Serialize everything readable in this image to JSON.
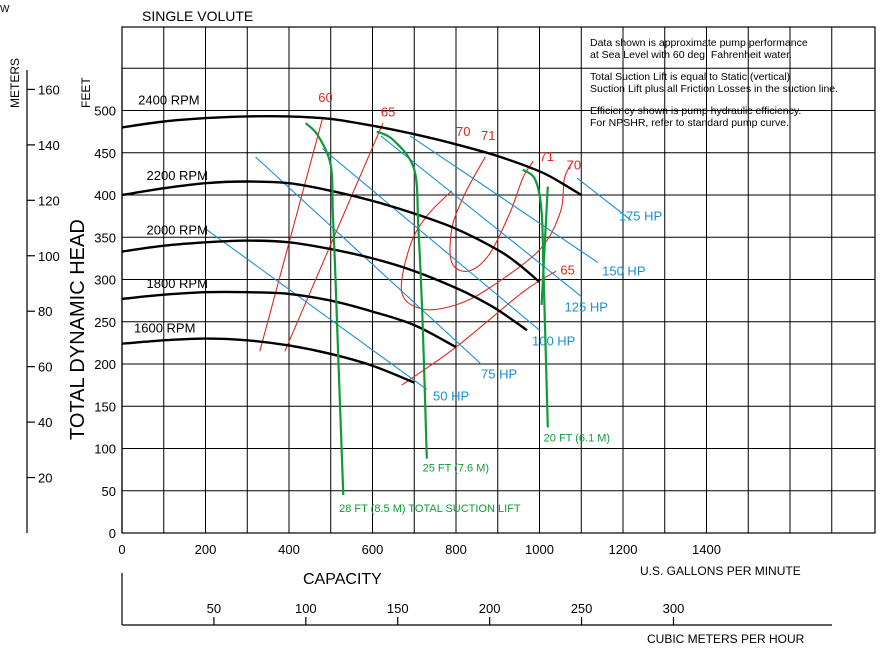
{
  "corner_mark": "W",
  "chart_data": {
    "type": "line",
    "title": "SINGLE VOLUTE",
    "xlabel": "CAPACITY",
    "x_units_primary": "U.S. GALLONS PER MINUTE",
    "x_units_secondary": "CUBIC METERS PER HOUR",
    "ylabel": "TOTAL DYNAMIC HEAD",
    "y_units_feet": "FEET",
    "y_units_meters": "METERS",
    "xlim": [
      0,
      1750
    ],
    "ylim": [
      0,
      600
    ],
    "x_ticks": [
      0,
      200,
      400,
      600,
      800,
      1000,
      1200,
      1400
    ],
    "y_ticks": [
      0,
      50,
      100,
      150,
      200,
      250,
      300,
      350,
      400,
      450,
      500
    ],
    "meter_ticks": [
      20,
      40,
      60,
      80,
      100,
      120,
      140,
      160
    ],
    "m3h_ticks": [
      50,
      100,
      150,
      200,
      250,
      300
    ],
    "grid": true,
    "notes": [
      [
        "Data shown is approximate pump performance",
        "at Sea Level with 60 deg. Fahrenheit water."
      ],
      [
        "Total Suction Lift is equal to Static (vertical)",
        "Suction Lift plus all Friction Losses in the suction line."
      ],
      [
        "Efficiency shown is pump hydraulic efficiency.",
        "For NPSHR, refer to standard pump curve."
      ]
    ],
    "rpm_curves": [
      {
        "name": "2400 RPM",
        "label_at": [
          10,
          507
        ],
        "x": [
          0,
          100,
          200,
          300,
          400,
          500,
          600,
          700,
          800,
          900,
          1000,
          1050,
          1100
        ],
        "y": [
          480,
          487,
          491,
          493,
          493,
          490,
          482,
          472,
          460,
          446,
          428,
          415,
          400
        ]
      },
      {
        "name": "2200 RPM",
        "label_at": [
          30,
          418
        ],
        "x": [
          0,
          100,
          200,
          300,
          400,
          500,
          600,
          700,
          800,
          900,
          950,
          1000
        ],
        "y": [
          400,
          408,
          414,
          416,
          414,
          405,
          393,
          378,
          360,
          335,
          318,
          297
        ]
      },
      {
        "name": "2000 RPM",
        "label_at": [
          30,
          353
        ],
        "x": [
          0,
          100,
          200,
          300,
          400,
          500,
          600,
          700,
          800,
          850,
          900,
          970
        ],
        "y": [
          333,
          340,
          344,
          346,
          344,
          336,
          325,
          310,
          290,
          278,
          264,
          240
        ]
      },
      {
        "name": "1800 RPM",
        "label_at": [
          30,
          290
        ],
        "x": [
          0,
          100,
          200,
          300,
          400,
          500,
          600,
          700,
          800
        ],
        "y": [
          277,
          282,
          285,
          285,
          283,
          275,
          262,
          246,
          220
        ]
      },
      {
        "name": "1600 RPM",
        "label_at": [
          0,
          237
        ],
        "x": [
          0,
          100,
          200,
          300,
          400,
          500,
          600,
          700
        ],
        "y": [
          224,
          228,
          230,
          228,
          222,
          212,
          198,
          178
        ]
      }
    ],
    "hp_lines": [
      {
        "name": "50 HP",
        "x": [
          200,
          730
        ],
        "y": [
          360,
          170
        ],
        "label_at": [
          745,
          157
        ]
      },
      {
        "name": "75 HP",
        "x": [
          320,
          860
        ],
        "y": [
          445,
          200
        ],
        "label_at": [
          860,
          183
        ]
      },
      {
        "name": "100 HP",
        "x": [
          480,
          1000
        ],
        "y": [
          455,
          240
        ],
        "label_at": [
          982,
          222
        ]
      },
      {
        "name": "125 HP",
        "x": [
          620,
          1100
        ],
        "y": [
          470,
          280
        ],
        "label_at": [
          1060,
          262
        ]
      },
      {
        "name": "150 HP",
        "x": [
          690,
          1140
        ],
        "y": [
          470,
          320
        ],
        "label_at": [
          1150,
          305
        ]
      },
      {
        "name": "175 HP",
        "x": [
          1090,
          1220
        ],
        "y": [
          420,
          370
        ],
        "label_at": [
          1190,
          370
        ]
      }
    ],
    "efficiency_curves": [
      {
        "name": "60",
        "x": [
          330,
          480
        ],
        "y": [
          215,
          490
        ],
        "label_at": [
          470,
          510
        ]
      },
      {
        "name": "65",
        "x": [
          390,
          625
        ],
        "y": [
          215,
          485
        ],
        "label_at": [
          620,
          493
        ]
      },
      {
        "name": "70",
        "x": [
          790,
          730,
          690,
          670,
          720,
          800,
          880,
          1000,
          1050,
          1060,
          1080
        ],
        "y": [
          405,
          375,
          340,
          285,
          265,
          270,
          290,
          335,
          380,
          420,
          440
        ],
        "label_at": [
          800,
          470
        ]
      },
      {
        "name": "71",
        "x": [
          870,
          820,
          790,
          790,
          830,
          880,
          930,
          960,
          985
        ],
        "y": [
          445,
          400,
          360,
          320,
          310,
          330,
          380,
          420,
          440
        ],
        "label_at": [
          860,
          465
        ]
      },
      {
        "name": "71",
        "x": [
          1010
        ],
        "y": [
          440
        ],
        "label_at": [
          1000,
          440
        ]
      },
      {
        "name": "70",
        "x": [
          1090
        ],
        "y": [
          440
        ],
        "label_at": [
          1065,
          430
        ]
      },
      {
        "name": "65",
        "x": [
          670,
          800,
          960,
          1040
        ],
        "y": [
          175,
          220,
          285,
          310
        ],
        "label_at": [
          1050,
          306
        ]
      }
    ],
    "npsh_curves": [
      {
        "name": "28 FT (8.5 M) TOTAL SUCTION LIFT",
        "x": [
          440,
          470,
          500,
          505,
          510,
          515,
          530
        ],
        "y": [
          485,
          470,
          435,
          380,
          320,
          250,
          45
        ],
        "label_at": [
          520,
          25
        ]
      },
      {
        "name": "25 FT (7.6 M)",
        "x": [
          610,
          650,
          700,
          710,
          720,
          730
        ],
        "y": [
          475,
          465,
          430,
          360,
          250,
          88
        ],
        "label_at": [
          720,
          73
        ]
      },
      {
        "name": "20 FT (6.1 M)",
        "x": [
          960,
          990,
          1005,
          1010,
          1020
        ],
        "y": [
          430,
          418,
          380,
          300,
          125
        ],
        "label_at": [
          1010,
          108
        ]
      },
      {
        "name": "20 FT (6.1 M) branch",
        "x": [
          1020,
          1005
        ],
        "y": [
          410,
          270
        ]
      }
    ]
  }
}
